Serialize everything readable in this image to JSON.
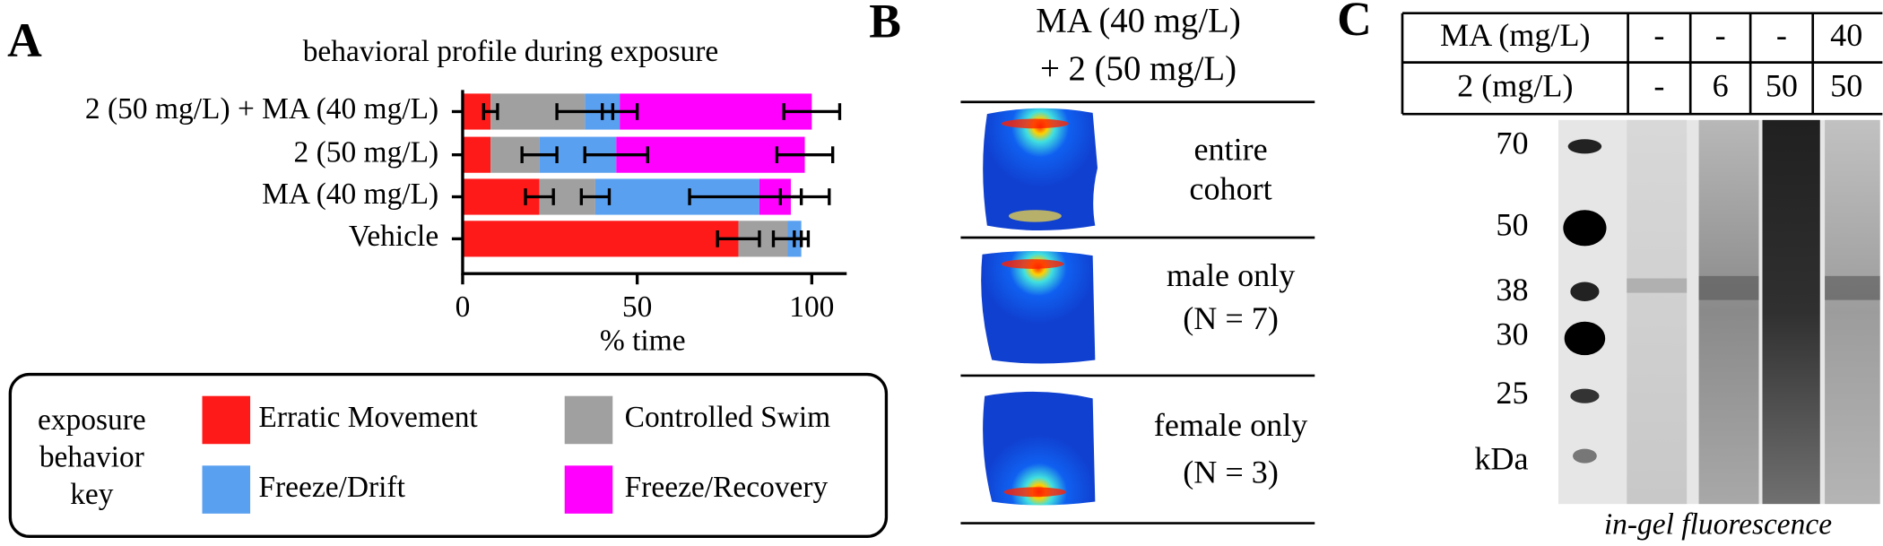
{
  "panels": {
    "A": "A",
    "B": "B",
    "C": "C"
  },
  "chart_data": {
    "type": "bar",
    "orientation": "horizontal",
    "stacked": true,
    "title": "behavioral profile during exposure",
    "xlabel": "% time",
    "categories": [
      "2 (50 mg/L) + MA (40 mg/L)",
      "2 (50 mg/L)",
      "MA (40 mg/L)",
      "Vehicle"
    ],
    "series": [
      {
        "name": "Erratic Movement",
        "color": "#ff1a1a",
        "values": [
          8,
          8,
          22,
          79
        ],
        "errors": [
          2,
          0,
          4,
          6
        ]
      },
      {
        "name": "Controlled Swim",
        "color": "#a0a0a0",
        "values": [
          27,
          14,
          16,
          14
        ],
        "errors": [
          8,
          5,
          4,
          4
        ]
      },
      {
        "name": "Freeze/Drift",
        "color": "#5aa0f0",
        "values": [
          10,
          22,
          47,
          4
        ],
        "errors": [
          5,
          9,
          20,
          2
        ]
      },
      {
        "name": "Freeze/Recovery",
        "color": "#ff00ff",
        "values": [
          55,
          54,
          9,
          0
        ],
        "errors": [
          8,
          8,
          3,
          0
        ]
      }
    ],
    "xlim": [
      0,
      110
    ],
    "xticks": [
      0,
      50,
      100
    ],
    "legend_title": [
      "exposure",
      "behavior",
      "key"
    ]
  },
  "heatmap_panel": {
    "header": [
      "MA (40 mg/L)",
      "+ 2 (50 mg/L)"
    ],
    "rows": [
      [
        "entire",
        "cohort"
      ],
      [
        "male only",
        "(N = 7)"
      ],
      [
        "female only",
        "(N = 3)"
      ]
    ]
  },
  "gel_panel": {
    "table": {
      "rows": [
        [
          "MA (mg/L)",
          "-",
          "-",
          "-",
          "40"
        ],
        [
          "2 (mg/L)",
          "-",
          "6",
          "50",
          "50"
        ]
      ]
    },
    "markers": [
      "70",
      "50",
      "38",
      "30",
      "25",
      "kDa"
    ],
    "caption": "in-gel fluorescence"
  }
}
